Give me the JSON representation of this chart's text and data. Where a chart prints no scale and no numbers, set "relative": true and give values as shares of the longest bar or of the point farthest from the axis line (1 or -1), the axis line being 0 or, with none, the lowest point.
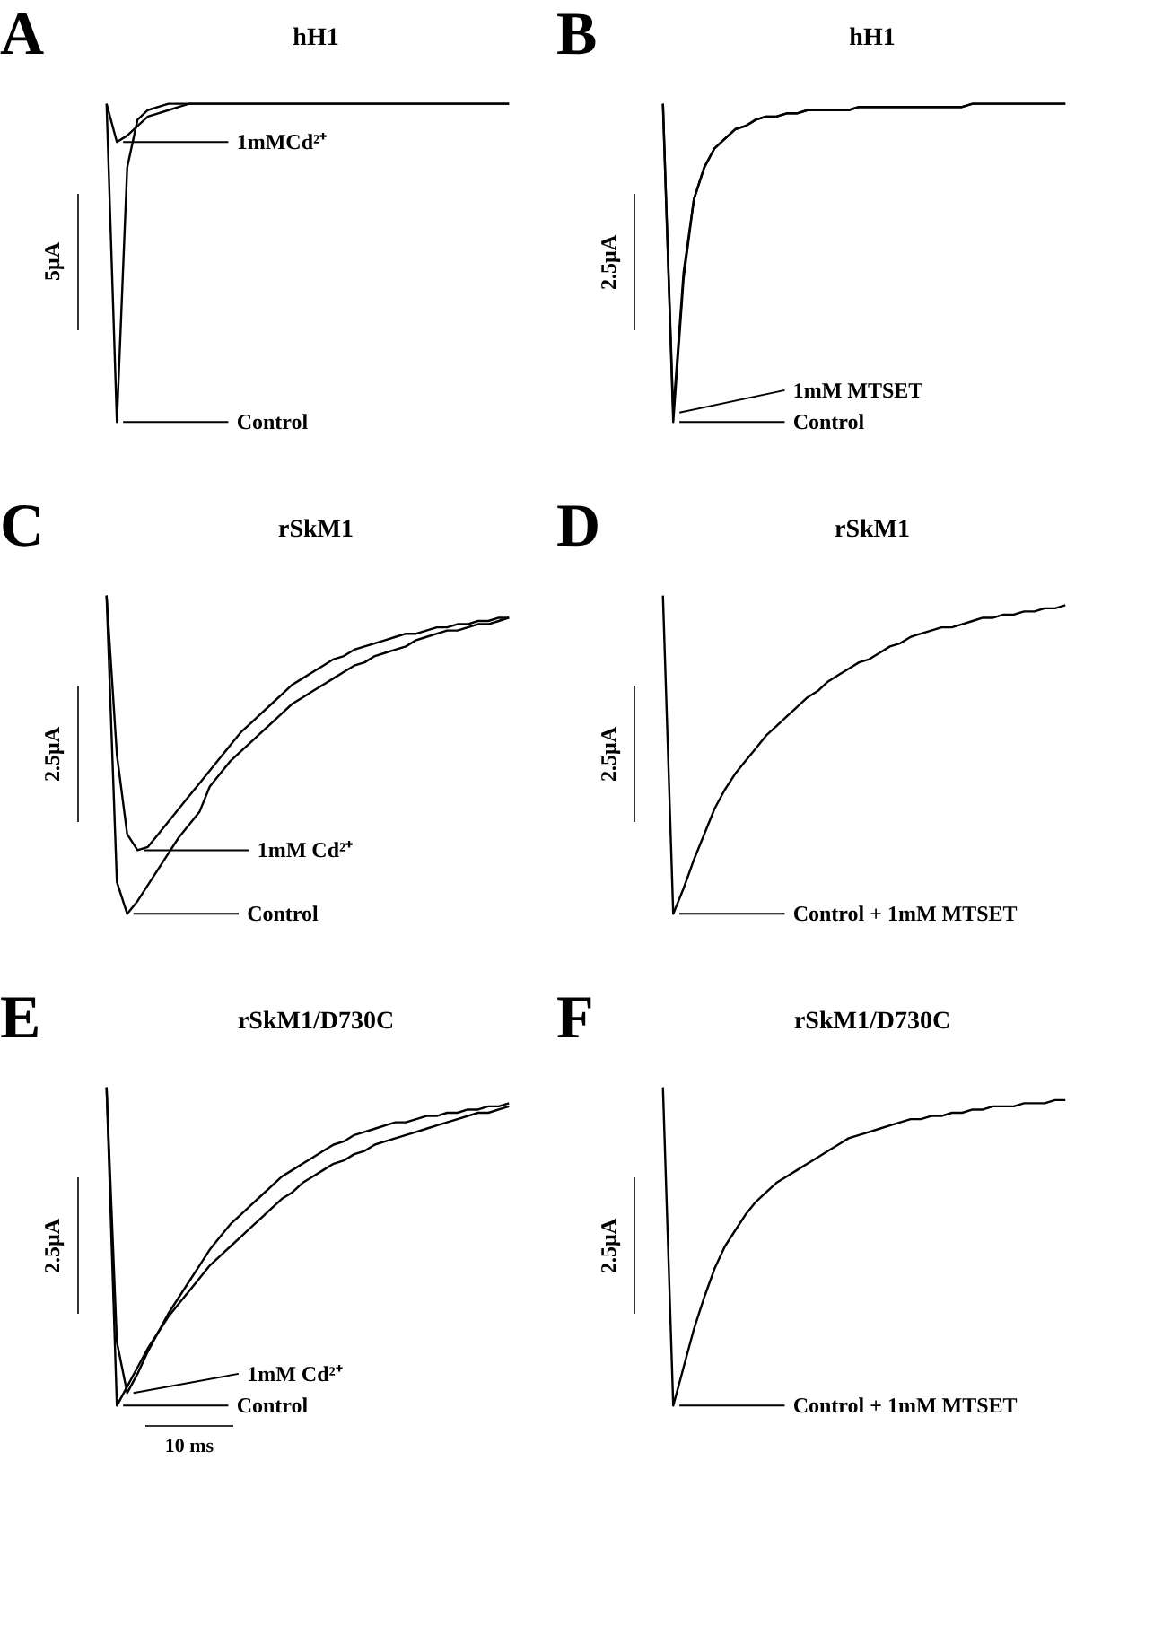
{
  "chart_data": [
    {
      "type": "line",
      "title": "hH1",
      "relative": true,
      "legend": "bottom left",
      "annotations": [
        "A",
        "5μA"
      ],
      "categories": [
        null,
        null,
        null,
        null,
        null,
        null,
        null,
        null,
        null,
        null,
        null,
        null,
        null,
        null,
        null,
        null,
        null,
        null,
        null,
        null,
        null,
        null,
        null,
        null,
        null,
        null,
        null,
        null,
        null,
        null,
        null,
        null,
        null,
        null,
        null,
        null,
        null,
        null,
        null,
        null
      ],
      "series": [
        {
          "name": "1mMCd²⁺",
          "color": "#000000",
          "values": [
            1.0,
            0.88,
            0.9,
            0.93,
            0.96,
            0.97,
            0.98,
            0.99,
            1.0,
            1.0,
            1.0,
            1.0,
            1.0,
            1.0,
            1.0,
            1.0,
            1.0,
            1.0,
            1.0,
            1.0,
            1.0,
            1.0,
            1.0,
            1.0,
            1.0,
            1.0,
            1.0,
            1.0,
            1.0,
            1.0,
            1.0,
            1.0,
            1.0,
            1.0,
            1.0,
            1.0,
            1.0,
            1.0,
            1.0,
            1.0
          ]
        },
        {
          "name": "Control",
          "color": "#000000",
          "values": [
            1.0,
            0.0,
            0.8,
            0.95,
            0.98,
            0.99,
            1.0,
            1.0,
            1.0,
            1.0,
            1.0,
            1.0,
            1.0,
            1.0,
            1.0,
            1.0,
            1.0,
            1.0,
            1.0,
            1.0,
            1.0,
            1.0,
            1.0,
            1.0,
            1.0,
            1.0,
            1.0,
            1.0,
            1.0,
            1.0,
            1.0,
            1.0,
            1.0,
            1.0,
            1.0,
            1.0,
            1.0,
            1.0,
            1.0,
            1.0
          ]
        }
      ]
    },
    {
      "type": "line",
      "title": "hH1",
      "relative": true,
      "legend": "bottom left",
      "annotations": [
        "B",
        "2.5μA"
      ],
      "categories": [
        null,
        null,
        null,
        null,
        null,
        null,
        null,
        null,
        null,
        null,
        null,
        null,
        null,
        null,
        null,
        null,
        null,
        null,
        null,
        null,
        null,
        null,
        null,
        null,
        null,
        null,
        null,
        null,
        null,
        null,
        null,
        null,
        null,
        null,
        null,
        null,
        null,
        null,
        null,
        null
      ],
      "series": [
        {
          "name": "1mM MTSET",
          "color": "#000000",
          "values": [
            1.0,
            0.03,
            0.47,
            0.7,
            0.8,
            0.86,
            0.89,
            0.92,
            0.93,
            0.95,
            0.96,
            0.96,
            0.97,
            0.97,
            0.98,
            0.98,
            0.98,
            0.98,
            0.98,
            0.99,
            0.99,
            0.99,
            0.99,
            0.99,
            0.99,
            0.99,
            0.99,
            0.99,
            0.99,
            0.99,
            1.0,
            1.0,
            1.0,
            1.0,
            1.0,
            1.0,
            1.0,
            1.0,
            1.0,
            1.0
          ]
        },
        {
          "name": "Control",
          "color": "#000000",
          "values": [
            1.0,
            0.0,
            0.45,
            0.7,
            0.8,
            0.86,
            0.89,
            0.92,
            0.93,
            0.95,
            0.96,
            0.96,
            0.97,
            0.97,
            0.98,
            0.98,
            0.98,
            0.98,
            0.98,
            0.99,
            0.99,
            0.99,
            0.99,
            0.99,
            0.99,
            0.99,
            0.99,
            0.99,
            0.99,
            0.99,
            1.0,
            1.0,
            1.0,
            1.0,
            1.0,
            1.0,
            1.0,
            1.0,
            1.0,
            1.0
          ]
        }
      ]
    },
    {
      "type": "line",
      "title": "rSkM1",
      "relative": true,
      "legend": "bottom left",
      "annotations": [
        "C",
        "2.5μA"
      ],
      "categories": [
        null,
        null,
        null,
        null,
        null,
        null,
        null,
        null,
        null,
        null,
        null,
        null,
        null,
        null,
        null,
        null,
        null,
        null,
        null,
        null,
        null,
        null,
        null,
        null,
        null,
        null,
        null,
        null,
        null,
        null,
        null,
        null,
        null,
        null,
        null,
        null,
        null,
        null,
        null,
        null
      ],
      "series": [
        {
          "name": "1mM Cd²⁺",
          "color": "#000000",
          "values": [
            1.0,
            0.5,
            0.25,
            0.2,
            0.21,
            0.25,
            0.29,
            0.33,
            0.37,
            0.41,
            0.45,
            0.49,
            0.53,
            0.57,
            0.6,
            0.63,
            0.66,
            0.69,
            0.72,
            0.74,
            0.76,
            0.78,
            0.8,
            0.81,
            0.83,
            0.84,
            0.85,
            0.86,
            0.87,
            0.88,
            0.88,
            0.89,
            0.9,
            0.9,
            0.91,
            0.91,
            0.92,
            0.92,
            0.93,
            0.93
          ]
        },
        {
          "name": "Control",
          "color": "#000000",
          "values": [
            1.0,
            0.1,
            0.0,
            0.04,
            0.09,
            0.14,
            0.19,
            0.24,
            0.28,
            0.32,
            0.4,
            0.44,
            0.48,
            0.51,
            0.54,
            0.57,
            0.6,
            0.63,
            0.66,
            0.68,
            0.7,
            0.72,
            0.74,
            0.76,
            0.78,
            0.79,
            0.81,
            0.82,
            0.83,
            0.84,
            0.86,
            0.87,
            0.88,
            0.89,
            0.89,
            0.9,
            0.91,
            0.91,
            0.92,
            0.93
          ]
        }
      ]
    },
    {
      "type": "line",
      "title": "rSkM1",
      "relative": true,
      "annotations": [
        "D",
        "2.5μA"
      ],
      "categories": [
        null,
        null,
        null,
        null,
        null,
        null,
        null,
        null,
        null,
        null,
        null,
        null,
        null,
        null,
        null,
        null,
        null,
        null,
        null,
        null,
        null,
        null,
        null,
        null,
        null,
        null,
        null,
        null,
        null,
        null,
        null,
        null,
        null,
        null,
        null,
        null,
        null,
        null,
        null,
        null
      ],
      "series": [
        {
          "name": "Control + 1mM MTSET",
          "color": "#000000",
          "values": [
            1.0,
            0.0,
            0.08,
            0.17,
            0.25,
            0.33,
            0.39,
            0.44,
            0.48,
            0.52,
            0.56,
            0.59,
            0.62,
            0.65,
            0.68,
            0.7,
            0.73,
            0.75,
            0.77,
            0.79,
            0.8,
            0.82,
            0.84,
            0.85,
            0.87,
            0.88,
            0.89,
            0.9,
            0.9,
            0.91,
            0.92,
            0.93,
            0.93,
            0.94,
            0.94,
            0.95,
            0.95,
            0.96,
            0.96,
            0.97
          ]
        }
      ]
    },
    {
      "type": "line",
      "title": "rSkM1/D730C",
      "relative": true,
      "legend": "bottom left",
      "annotations": [
        "E",
        "2.5μA",
        "10 ms"
      ],
      "categories": [
        null,
        null,
        null,
        null,
        null,
        null,
        null,
        null,
        null,
        null,
        null,
        null,
        null,
        null,
        null,
        null,
        null,
        null,
        null,
        null,
        null,
        null,
        null,
        null,
        null,
        null,
        null,
        null,
        null,
        null,
        null,
        null,
        null,
        null,
        null,
        null,
        null,
        null,
        null,
        null
      ],
      "series": [
        {
          "name": "1mM Cd²⁺",
          "color": "#000000",
          "values": [
            1.0,
            0.2,
            0.04,
            0.1,
            0.17,
            0.23,
            0.29,
            0.34,
            0.39,
            0.44,
            0.49,
            0.53,
            0.57,
            0.6,
            0.63,
            0.66,
            0.69,
            0.72,
            0.74,
            0.76,
            0.78,
            0.8,
            0.82,
            0.83,
            0.85,
            0.86,
            0.87,
            0.88,
            0.89,
            0.89,
            0.9,
            0.91,
            0.91,
            0.92,
            0.92,
            0.93,
            0.93,
            0.94,
            0.94,
            0.95
          ]
        },
        {
          "name": "Control",
          "color": "#000000",
          "values": [
            1.0,
            0.0,
            0.06,
            0.12,
            0.18,
            0.23,
            0.28,
            0.32,
            0.36,
            0.4,
            0.44,
            0.47,
            0.5,
            0.53,
            0.56,
            0.59,
            0.62,
            0.65,
            0.67,
            0.7,
            0.72,
            0.74,
            0.76,
            0.77,
            0.79,
            0.8,
            0.82,
            0.83,
            0.84,
            0.85,
            0.86,
            0.87,
            0.88,
            0.89,
            0.9,
            0.91,
            0.92,
            0.92,
            0.93,
            0.94
          ]
        }
      ]
    },
    {
      "type": "line",
      "title": "rSkM1/D730C",
      "relative": true,
      "annotations": [
        "F",
        "2.5μA"
      ],
      "categories": [
        null,
        null,
        null,
        null,
        null,
        null,
        null,
        null,
        null,
        null,
        null,
        null,
        null,
        null,
        null,
        null,
        null,
        null,
        null,
        null,
        null,
        null,
        null,
        null,
        null,
        null,
        null,
        null,
        null,
        null,
        null,
        null,
        null,
        null,
        null,
        null,
        null,
        null,
        null,
        null
      ],
      "series": [
        {
          "name": "Control + 1mM MTSET",
          "color": "#000000",
          "values": [
            1.0,
            0.0,
            0.12,
            0.24,
            0.34,
            0.43,
            0.5,
            0.55,
            0.6,
            0.64,
            0.67,
            0.7,
            0.72,
            0.74,
            0.76,
            0.78,
            0.8,
            0.82,
            0.84,
            0.85,
            0.86,
            0.87,
            0.88,
            0.89,
            0.9,
            0.9,
            0.91,
            0.91,
            0.92,
            0.92,
            0.93,
            0.93,
            0.94,
            0.94,
            0.94,
            0.95,
            0.95,
            0.95,
            0.96,
            0.96
          ]
        }
      ]
    }
  ]
}
